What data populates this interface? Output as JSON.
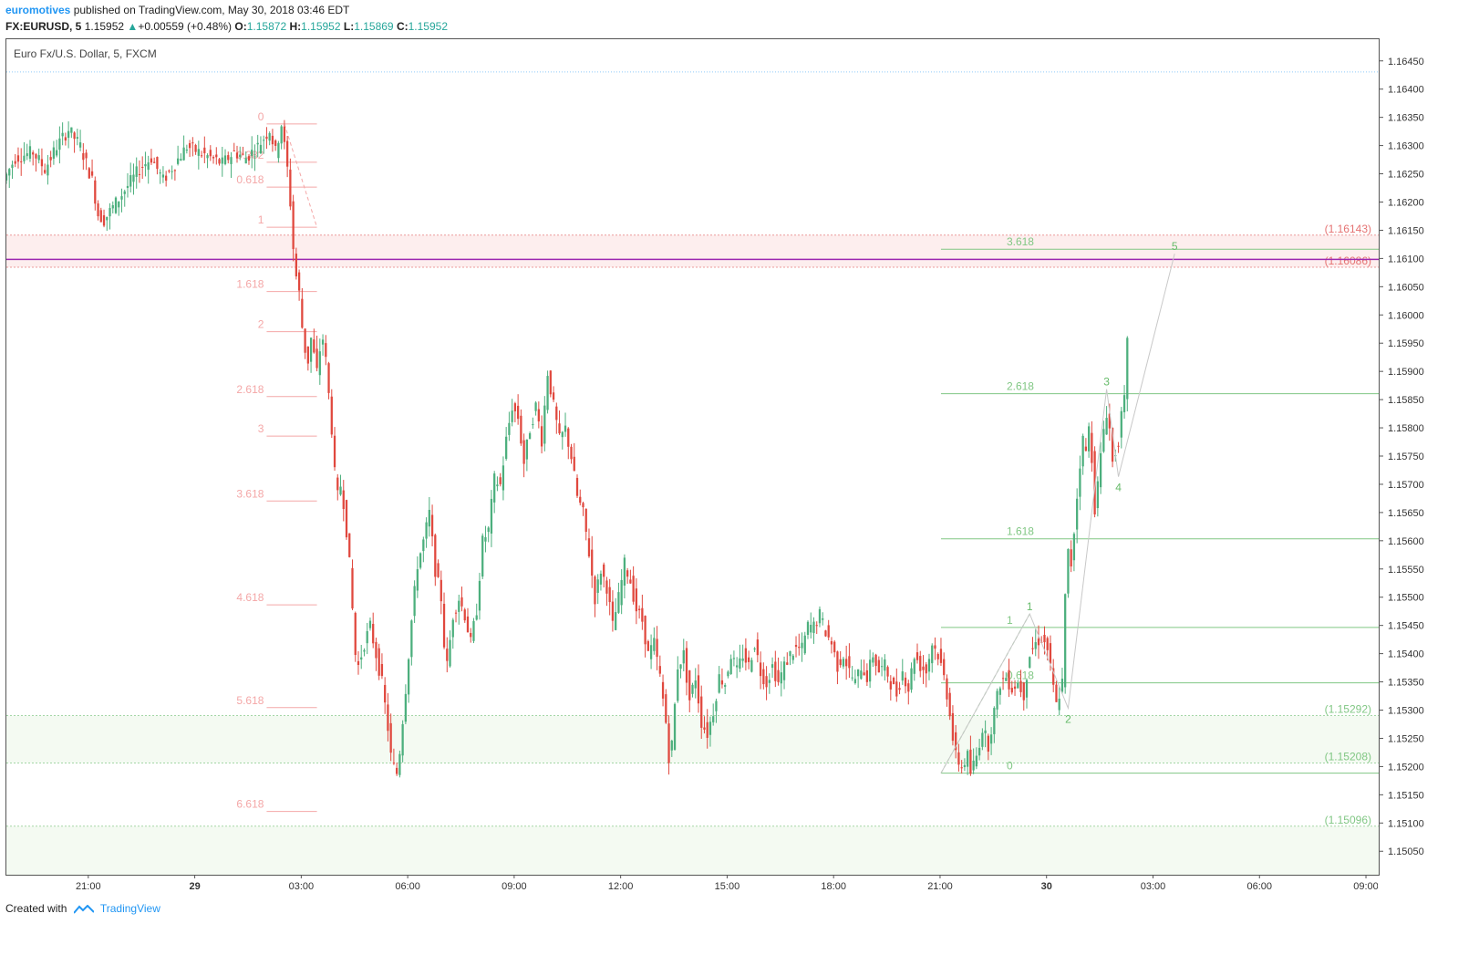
{
  "header": {
    "author": "euromotives",
    "published": " published on TradingView.com, May 30, 2018 03:46 EDT",
    "symbol": "FX:EURUSD, 5",
    "last": "1.15952",
    "change": "+0.00559 (+0.48%)",
    "o_label": "O:",
    "o_value": "1.15872",
    "h_label": "H:",
    "h_value": "1.15952",
    "l_label": "L:",
    "l_value": "1.15869",
    "c_label": "C:",
    "c_value": "1.15952"
  },
  "footer": {
    "created_with": "Created with",
    "brand": "TradingView"
  },
  "chart_data": {
    "type": "candlestick",
    "title": "Euro Fx/U.S. Dollar, 5, FXCM",
    "ylim": [
      1.1501,
      1.1649
    ],
    "y_ticks": [
      "1.16450",
      "1.16400",
      "1.16350",
      "1.16300",
      "1.16250",
      "1.16200",
      "1.16150",
      "1.16100",
      "1.16050",
      "1.16000",
      "1.15950",
      "1.15900",
      "1.15850",
      "1.15800",
      "1.15750",
      "1.15700",
      "1.15650",
      "1.15600",
      "1.15550",
      "1.15500",
      "1.15450",
      "1.15400",
      "1.15350",
      "1.15300",
      "1.15250",
      "1.15200",
      "1.15150",
      "1.15100",
      "1.15050"
    ],
    "x_ticks": [
      {
        "label": "21:00",
        "bold": false,
        "t": 0
      },
      {
        "label": "29",
        "bold": true,
        "t": 36
      },
      {
        "label": "03:00",
        "bold": false,
        "t": 72
      },
      {
        "label": "06:00",
        "bold": false,
        "t": 108
      },
      {
        "label": "09:00",
        "bold": false,
        "t": 144
      },
      {
        "label": "12:00",
        "bold": false,
        "t": 180
      },
      {
        "label": "15:00",
        "bold": false,
        "t": 216
      },
      {
        "label": "18:00",
        "bold": false,
        "t": 252
      },
      {
        "label": "21:00",
        "bold": false,
        "t": 288
      },
      {
        "label": "30",
        "bold": true,
        "t": 324
      },
      {
        "label": "03:00",
        "bold": false,
        "t": 360
      },
      {
        "label": "06:00",
        "bold": false,
        "t": 396
      },
      {
        "label": "09:00",
        "bold": false,
        "t": 432
      }
    ],
    "x_range": [
      -28,
      436
    ],
    "price_path": [
      [
        -28,
        1.1624
      ],
      [
        -24,
        1.1628
      ],
      [
        -18,
        1.1629
      ],
      [
        -14,
        1.1626
      ],
      [
        -10,
        1.163
      ],
      [
        -6,
        1.1633
      ],
      [
        -2,
        1.163
      ],
      [
        2,
        1.1624
      ],
      [
        4,
        1.1618
      ],
      [
        6,
        1.1617
      ],
      [
        10,
        1.162
      ],
      [
        14,
        1.1623
      ],
      [
        18,
        1.1626
      ],
      [
        22,
        1.1628
      ],
      [
        26,
        1.1624
      ],
      [
        30,
        1.1627
      ],
      [
        34,
        1.163
      ],
      [
        38,
        1.1629
      ],
      [
        42,
        1.1628
      ],
      [
        46,
        1.1627
      ],
      [
        50,
        1.1629
      ],
      [
        54,
        1.1628
      ],
      [
        58,
        1.163
      ],
      [
        62,
        1.1633
      ],
      [
        64,
        1.1629
      ],
      [
        66,
        1.1634
      ],
      [
        68,
        1.1626
      ],
      [
        69,
        1.162
      ],
      [
        70,
        1.1612
      ],
      [
        71,
        1.1607
      ],
      [
        72,
        1.1604
      ],
      [
        73,
        1.1598
      ],
      [
        74,
        1.1594
      ],
      [
        75,
        1.1592
      ],
      [
        76,
        1.1596
      ],
      [
        77,
        1.1593
      ],
      [
        78,
        1.159
      ],
      [
        79,
        1.1594
      ],
      [
        80,
        1.1596
      ],
      [
        81,
        1.1592
      ],
      [
        82,
        1.1586
      ],
      [
        83,
        1.158
      ],
      [
        84,
        1.1572
      ],
      [
        85,
        1.1568
      ],
      [
        86,
        1.157
      ],
      [
        87,
        1.1567
      ],
      [
        88,
        1.1562
      ],
      [
        89,
        1.1556
      ],
      [
        90,
        1.1548
      ],
      [
        91,
        1.154
      ],
      [
        92,
        1.1538
      ],
      [
        94,
        1.1542
      ],
      [
        96,
        1.1545
      ],
      [
        98,
        1.154
      ],
      [
        100,
        1.1535
      ],
      [
        102,
        1.1527
      ],
      [
        103,
        1.1522
      ],
      [
        104,
        1.152
      ],
      [
        105,
        1.1519
      ],
      [
        106,
        1.1523
      ],
      [
        108,
        1.1534
      ],
      [
        110,
        1.1546
      ],
      [
        112,
        1.1556
      ],
      [
        114,
        1.156
      ],
      [
        116,
        1.1565
      ],
      [
        118,
        1.1555
      ],
      [
        120,
        1.155
      ],
      [
        121,
        1.1542
      ],
      [
        122,
        1.1538
      ],
      [
        124,
        1.1547
      ],
      [
        126,
        1.155
      ],
      [
        128,
        1.1547
      ],
      [
        130,
        1.1542
      ],
      [
        132,
        1.1548
      ],
      [
        134,
        1.156
      ],
      [
        136,
        1.1562
      ],
      [
        138,
        1.1571
      ],
      [
        140,
        1.157
      ],
      [
        142,
        1.1578
      ],
      [
        144,
        1.1584
      ],
      [
        146,
        1.1582
      ],
      [
        148,
        1.1574
      ],
      [
        150,
        1.158
      ],
      [
        152,
        1.1584
      ],
      [
        154,
        1.1578
      ],
      [
        156,
        1.159
      ],
      [
        158,
        1.1584
      ],
      [
        160,
        1.1578
      ],
      [
        162,
        1.158
      ],
      [
        164,
        1.1575
      ],
      [
        166,
        1.1568
      ],
      [
        168,
        1.1565
      ],
      [
        170,
        1.1558
      ],
      [
        172,
        1.155
      ],
      [
        174,
        1.1555
      ],
      [
        176,
        1.1552
      ],
      [
        178,
        1.1545
      ],
      [
        180,
        1.155
      ],
      [
        182,
        1.1556
      ],
      [
        184,
        1.1553
      ],
      [
        186,
        1.1548
      ],
      [
        188,
        1.1546
      ],
      [
        190,
        1.154
      ],
      [
        192,
        1.1542
      ],
      [
        194,
        1.1536
      ],
      [
        196,
        1.1528
      ],
      [
        197,
        1.1522
      ],
      [
        198,
        1.1524
      ],
      [
        200,
        1.1538
      ],
      [
        202,
        1.154
      ],
      [
        204,
        1.1532
      ],
      [
        206,
        1.1536
      ],
      [
        208,
        1.1528
      ],
      [
        210,
        1.1526
      ],
      [
        212,
        1.153
      ],
      [
        214,
        1.1536
      ],
      [
        216,
        1.1535
      ],
      [
        218,
        1.154
      ],
      [
        220,
        1.1537
      ],
      [
        222,
        1.154
      ],
      [
        224,
        1.1538
      ],
      [
        226,
        1.1542
      ],
      [
        228,
        1.1537
      ],
      [
        230,
        1.1535
      ],
      [
        232,
        1.1538
      ],
      [
        234,
        1.1535
      ],
      [
        236,
        1.1538
      ],
      [
        238,
        1.154
      ],
      [
        240,
        1.1541
      ],
      [
        242,
        1.1541
      ],
      [
        244,
        1.1545
      ],
      [
        246,
        1.1545
      ],
      [
        248,
        1.1547
      ],
      [
        250,
        1.1544
      ],
      [
        252,
        1.1542
      ],
      [
        254,
        1.1538
      ],
      [
        256,
        1.154
      ],
      [
        258,
        1.1537
      ],
      [
        260,
        1.1535
      ],
      [
        262,
        1.1538
      ],
      [
        264,
        1.1536
      ],
      [
        266,
        1.154
      ],
      [
        268,
        1.1537
      ],
      [
        270,
        1.1538
      ],
      [
        272,
        1.1535
      ],
      [
        274,
        1.1533
      ],
      [
        276,
        1.1537
      ],
      [
        278,
        1.1534
      ],
      [
        280,
        1.154
      ],
      [
        282,
        1.1538
      ],
      [
        284,
        1.1537
      ],
      [
        286,
        1.1542
      ],
      [
        288,
        1.154
      ],
      [
        290,
        1.1536
      ],
      [
        292,
        1.153
      ],
      [
        293,
        1.1525
      ],
      [
        294,
        1.1522
      ],
      [
        296,
        1.152
      ],
      [
        298,
        1.1522
      ],
      [
        299,
        1.1519
      ],
      [
        301,
        1.1522
      ],
      [
        303,
        1.1527
      ],
      [
        305,
        1.1524
      ],
      [
        307,
        1.153
      ],
      [
        309,
        1.1535
      ],
      [
        311,
        1.1536
      ],
      [
        313,
        1.1534
      ],
      [
        315,
        1.1535
      ],
      [
        317,
        1.1533
      ],
      [
        319,
        1.154
      ],
      [
        321,
        1.1542
      ],
      [
        323,
        1.1543
      ],
      [
        325,
        1.1541
      ],
      [
        327,
        1.1534
      ],
      [
        328,
        1.1531
      ],
      [
        330,
        1.1535
      ],
      [
        331,
        1.155
      ],
      [
        332,
        1.1558
      ],
      [
        333,
        1.1556
      ],
      [
        334,
        1.1562
      ],
      [
        335,
        1.1568
      ],
      [
        336,
        1.1574
      ],
      [
        337,
        1.1578
      ],
      [
        338,
        1.1576
      ],
      [
        339,
        1.158
      ],
      [
        340,
        1.1575
      ],
      [
        341,
        1.1566
      ],
      [
        342,
        1.157
      ],
      [
        343,
        1.1575
      ],
      [
        344,
        1.158
      ],
      [
        345,
        1.1583
      ],
      [
        346,
        1.158
      ],
      [
        347,
        1.1574
      ],
      [
        348,
        1.1576
      ],
      [
        349,
        1.1578
      ],
      [
        350,
        1.1582
      ],
      [
        351,
        1.1585
      ],
      [
        352,
        1.1595
      ]
    ],
    "fib_left": {
      "color": "#f4a7a7",
      "levels": [
        {
          "label": "0",
          "price": 1.1634
        },
        {
          "label": "0.382",
          "price": 1.16272
        },
        {
          "label": "0.618",
          "price": 1.16228
        },
        {
          "label": "1",
          "price": 1.16157
        },
        {
          "label": "1.618",
          "price": 1.16043
        },
        {
          "label": "2",
          "price": 1.15972
        },
        {
          "label": "2.618",
          "price": 1.15857
        },
        {
          "label": "3",
          "price": 1.15787
        },
        {
          "label": "3.618",
          "price": 1.15672
        },
        {
          "label": "4.618",
          "price": 1.15488
        },
        {
          "label": "5.618",
          "price": 1.15306
        },
        {
          "label": "6.618",
          "price": 1.15122
        }
      ],
      "t_start": 60,
      "t_end": 77
    },
    "fib_right": {
      "color": "#81c784",
      "levels": [
        {
          "label": "3.618",
          "price": 1.16118
        },
        {
          "label": "2.618",
          "price": 1.15862
        },
        {
          "label": "1.618",
          "price": 1.15605
        },
        {
          "label": "1",
          "price": 1.15448
        },
        {
          "label": "0.618",
          "price": 1.1535
        },
        {
          "label": "0",
          "price": 1.1519
        }
      ],
      "t_start": 288,
      "t_end": 436
    },
    "zones": [
      {
        "top": 1.16143,
        "bottom": 1.16086,
        "color": "#fdeeee",
        "label_top": "(1.16143)",
        "label_bottom": "(1.16086)",
        "label_color": "#e57373"
      },
      {
        "top": 1.15292,
        "bottom": 1.15208,
        "color": "#f4faf2",
        "label_top": "(1.15292)",
        "label_bottom": "(1.15208)",
        "label_color": "#81c784"
      },
      {
        "top": 1.15096,
        "bottom": 1.1501,
        "color": "#f4faf2",
        "label_top": "(1.15096)",
        "label_bottom": "",
        "label_color": "#81c784"
      }
    ],
    "hline_purple": 1.161,
    "top_dotted": 1.16432,
    "waves": [
      {
        "label": "1",
        "t": 318,
        "price": 1.15472
      },
      {
        "label": "2",
        "t": 331,
        "price": 1.15305
      },
      {
        "label": "3",
        "t": 344,
        "price": 1.1587
      },
      {
        "label": "4",
        "t": 348,
        "price": 1.15715
      },
      {
        "label": "5",
        "t": 367,
        "price": 1.1611
      }
    ]
  }
}
